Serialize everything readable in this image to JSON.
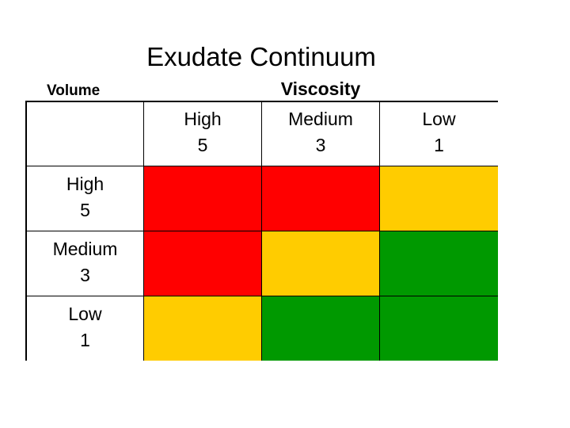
{
  "title": "Exudate Continuum",
  "row_axis_label": "Volume",
  "column_axis_label": "Viscosity",
  "columns": [
    {
      "label": "High",
      "value": "5"
    },
    {
      "label": "Medium",
      "value": "3"
    },
    {
      "label": "Low",
      "value": "1"
    }
  ],
  "rows": [
    {
      "label": "High",
      "value": "5"
    },
    {
      "label": "Medium",
      "value": "3"
    },
    {
      "label": "Low",
      "value": "1"
    }
  ],
  "colors": {
    "red": "#ff0000",
    "yellow": "#ffcc00",
    "green": "#009900"
  },
  "matrix": [
    [
      "red",
      "red",
      "yellow"
    ],
    [
      "red",
      "yellow",
      "green"
    ],
    [
      "yellow",
      "green",
      "green"
    ]
  ]
}
